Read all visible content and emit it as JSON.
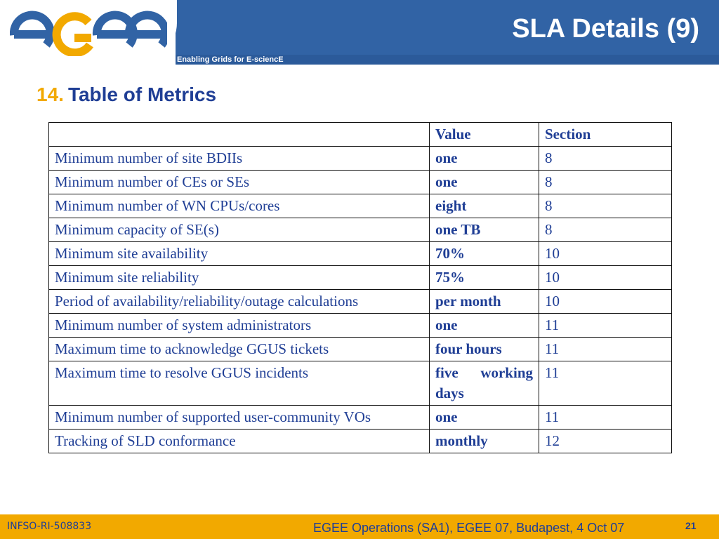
{
  "header": {
    "logo_text": "egee",
    "tagline": "Enabling Grids for E-sciencE",
    "slide_title": "SLA Details (9)"
  },
  "section": {
    "number": "14.",
    "title": "Table of Metrics"
  },
  "table": {
    "headers": [
      "",
      "Value",
      "Section"
    ],
    "rows": [
      [
        "Minimum number of site BDIIs",
        "one",
        "8"
      ],
      [
        "Minimum number of CEs or SEs",
        "one",
        "8"
      ],
      [
        "Minimum number of WN CPUs/cores",
        "eight",
        "8"
      ],
      [
        "Minimum capacity of SE(s)",
        "one TB",
        "8"
      ],
      [
        "Minimum site availability",
        "70%",
        "10"
      ],
      [
        "Minimum site reliability",
        "75%",
        "10"
      ],
      [
        "Period of availability/reliability/outage calculations",
        "per month",
        "10"
      ],
      [
        "Minimum number of system administrators",
        "one",
        "11"
      ],
      [
        "Maximum time to acknowledge GGUS tickets",
        "four hours",
        "11"
      ],
      [
        "Maximum time to resolve GGUS incidents",
        "five working days",
        "11"
      ],
      [
        "Minimum number of supported user-community VOs",
        "one",
        "11"
      ],
      [
        "Tracking of SLD conformance",
        "monthly",
        "12"
      ]
    ]
  },
  "footer": {
    "project_id": "INFSO-RI-508833",
    "event": "EGEE Operations (SA1), EGEE 07, Budapest, 4 Oct 07",
    "page_number": "21"
  },
  "colors": {
    "header_blue": "#3163a5",
    "logo_orange": "#f2a900",
    "text_blue": "#1f3e95",
    "footer_gold": "#f2a900"
  }
}
